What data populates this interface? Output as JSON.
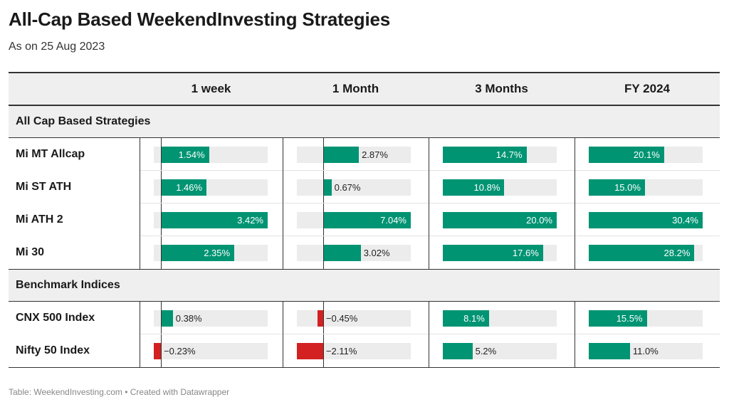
{
  "title": "All-Cap Based WeekendInvesting Strategies",
  "subtitle": "As on 25 Aug 2023",
  "source": "Table: WeekendInvesting.com • Created with Datawrapper",
  "colors": {
    "positive": "#009473",
    "negative": "#d32020",
    "track": "#ececec"
  },
  "chart_data": {
    "type": "table",
    "columns": [
      "1 week",
      "1 Month",
      "3 Months",
      "FY 2024"
    ],
    "groups": [
      {
        "label": "All Cap Based Strategies",
        "rows": [
          {
            "name": "Mi MT Allcap",
            "values": [
              1.54,
              2.87,
              14.7,
              20.1
            ],
            "labels": [
              "1.54%",
              "2.87%",
              "14.7%",
              "20.1%"
            ]
          },
          {
            "name": "Mi ST ATH",
            "values": [
              1.46,
              0.67,
              10.8,
              15.0
            ],
            "labels": [
              "1.46%",
              "0.67%",
              "10.8%",
              "15.0%"
            ]
          },
          {
            "name": "Mi ATH 2",
            "values": [
              3.42,
              7.04,
              20.0,
              30.4
            ],
            "labels": [
              "3.42%",
              "7.04%",
              "20.0%",
              "30.4%"
            ]
          },
          {
            "name": "Mi 30",
            "values": [
              2.35,
              3.02,
              17.6,
              28.2
            ],
            "labels": [
              "2.35%",
              "3.02%",
              "17.6%",
              "28.2%"
            ]
          }
        ]
      },
      {
        "label": "Benchmark Indices",
        "rows": [
          {
            "name": "CNX 500 Index",
            "values": [
              0.38,
              -0.45,
              8.1,
              15.5
            ],
            "labels": [
              "0.38%",
              "−0.45%",
              "8.1%",
              "15.5%"
            ]
          },
          {
            "name": "Nifty 50 Index",
            "values": [
              -0.23,
              -2.11,
              5.2,
              11.0
            ],
            "labels": [
              "−0.23%",
              "−2.11%",
              "5.2%",
              "11.0%"
            ]
          }
        ]
      }
    ]
  }
}
